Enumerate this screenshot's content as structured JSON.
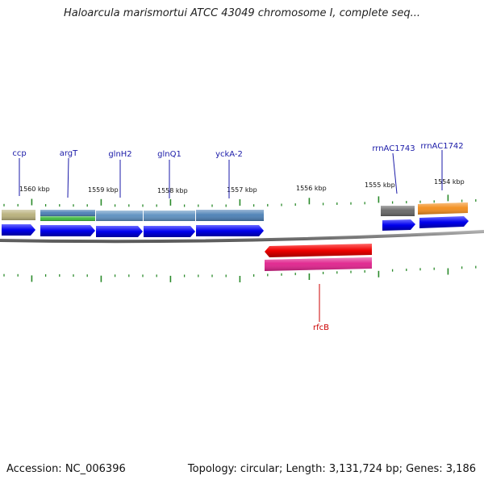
{
  "title": "Haloarcula marismortui ATCC 43049 chromosome I, complete seq...",
  "footer": {
    "accession": "Accession: NC_006396",
    "summary": "Topology: circular; Length: 3,131,724 bp; Genes: 3,186"
  },
  "colors": {
    "forward_cds": "#0000ee",
    "reverse_cds": "#ee0000",
    "backbone": "#808080",
    "ticks": "#2a8a2a",
    "forward_label": "#1a1aa8",
    "reverse_label": "#cc0000"
  },
  "ruler": [
    {
      "label": "1560 kbp"
    },
    {
      "label": "1559 kbp"
    },
    {
      "label": "1558 kbp"
    },
    {
      "label": "1557 kbp"
    },
    {
      "label": "1556 kbp"
    },
    {
      "label": "1555 kbp"
    },
    {
      "label": "1554 kbp"
    }
  ],
  "genes": [
    {
      "name": "ccp",
      "strand": "forward"
    },
    {
      "name": "argT",
      "strand": "forward"
    },
    {
      "name": "glnH2",
      "strand": "forward"
    },
    {
      "name": "glnQ1",
      "strand": "forward"
    },
    {
      "name": "yckA-2",
      "strand": "forward"
    },
    {
      "name": "rrnAC1743",
      "strand": "forward"
    },
    {
      "name": "rrnAC1742",
      "strand": "forward"
    },
    {
      "name": "rfcB",
      "strand": "reverse"
    }
  ],
  "feature_colors": {
    "ccp": "#b8b07a",
    "argT": "#4a7fb5",
    "argT_secondary": "#3cb83c",
    "glnH2": "#5b8fc0",
    "glnQ1": "#5b8fc0",
    "yckA-2": "#4a7fb5",
    "rrnAC1743": "#666666",
    "rrnAC1742": "#f28c1a",
    "rfcB_feature": "#e0208c"
  }
}
